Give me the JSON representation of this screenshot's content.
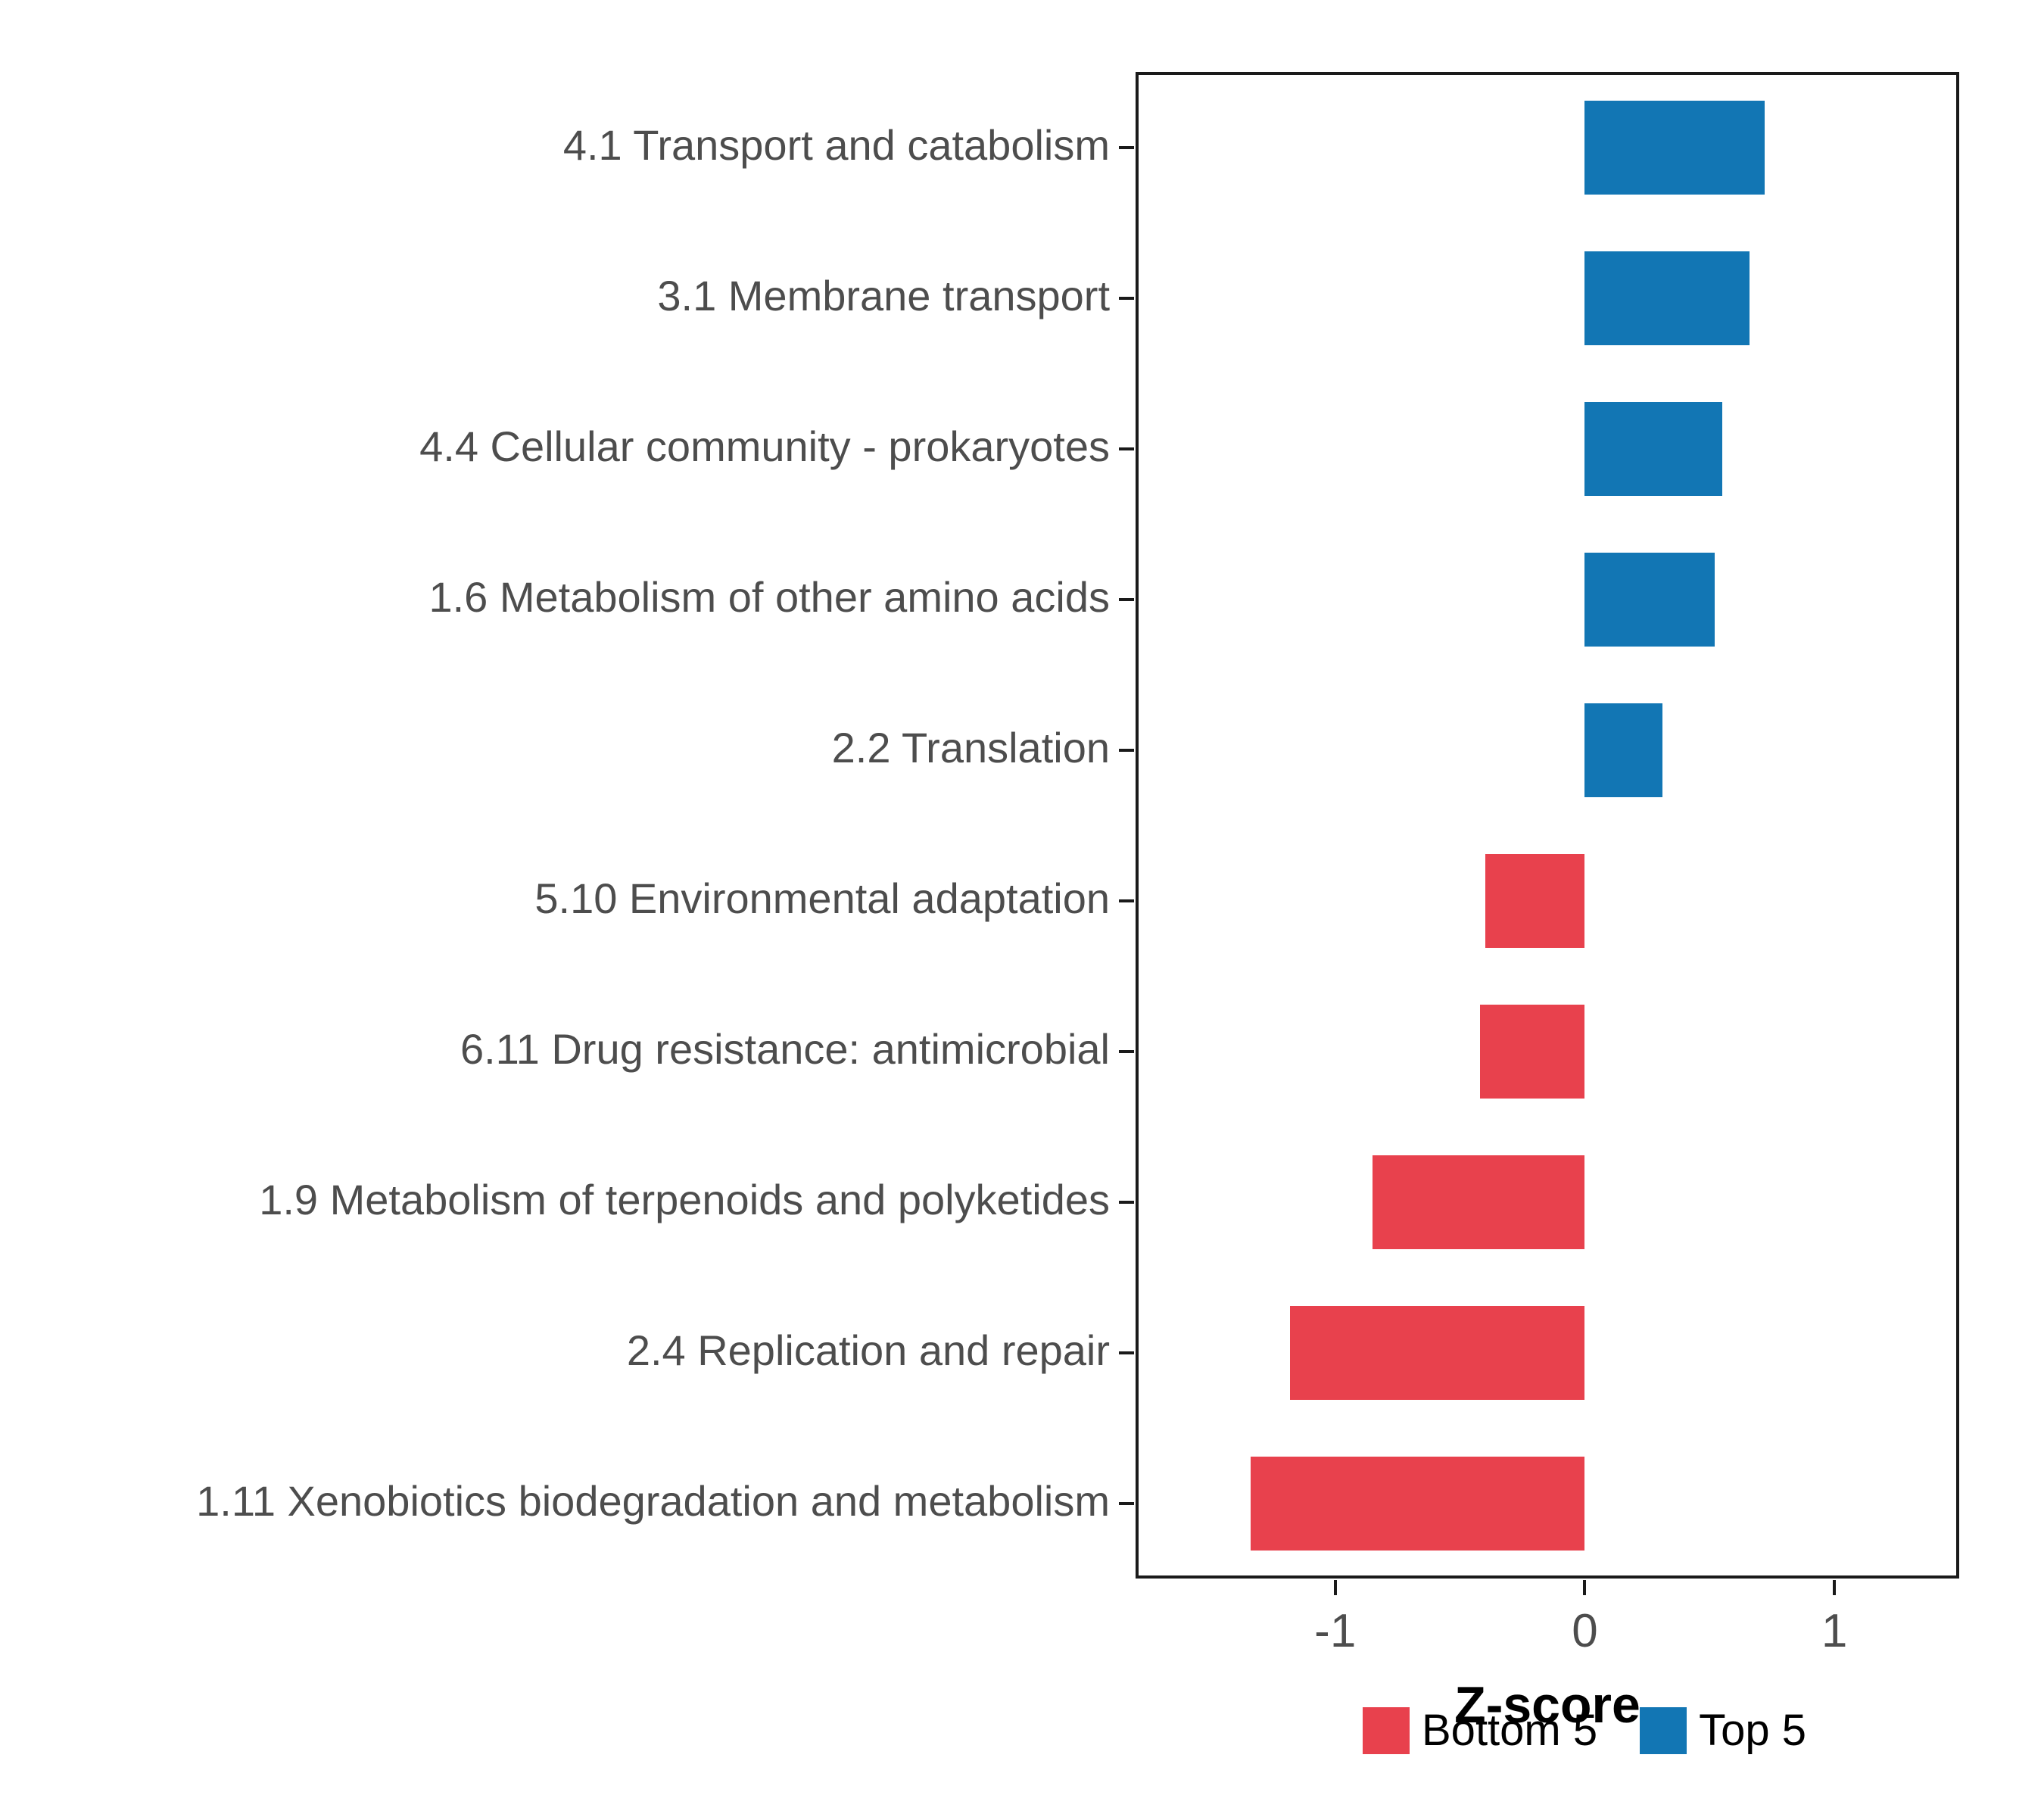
{
  "chart_data": {
    "type": "bar",
    "orientation": "horizontal",
    "title": "",
    "xlabel": "Z-score",
    "ylabel": "",
    "categories": [
      "4.1 Transport and catabolism",
      "3.1 Membrane transport",
      "4.4 Cellular community - prokaryotes",
      "1.6 Metabolism of other amino acids",
      "2.2 Translation",
      "5.10 Environmental adaptation",
      "6.11 Drug resistance: antimicrobial",
      "1.9 Metabolism of terpenoids and polyketides",
      "2.4 Replication and repair",
      "1.11 Xenobiotics biodegradation and metabolism"
    ],
    "values": [
      0.72,
      0.66,
      0.55,
      0.52,
      0.31,
      -0.4,
      -0.42,
      -0.85,
      -1.18,
      -1.34
    ],
    "xlim": [
      -1.8,
      1.5
    ],
    "xticks": [
      -1,
      0,
      1
    ],
    "grid": false,
    "legend_position": "bottom",
    "legend": [
      {
        "label": "Bottom 5",
        "color": "#E8414D"
      },
      {
        "label": "Top 5",
        "color": "#1276B4"
      }
    ],
    "colors": {
      "negative": "#E8414D",
      "positive": "#1276B4"
    }
  }
}
